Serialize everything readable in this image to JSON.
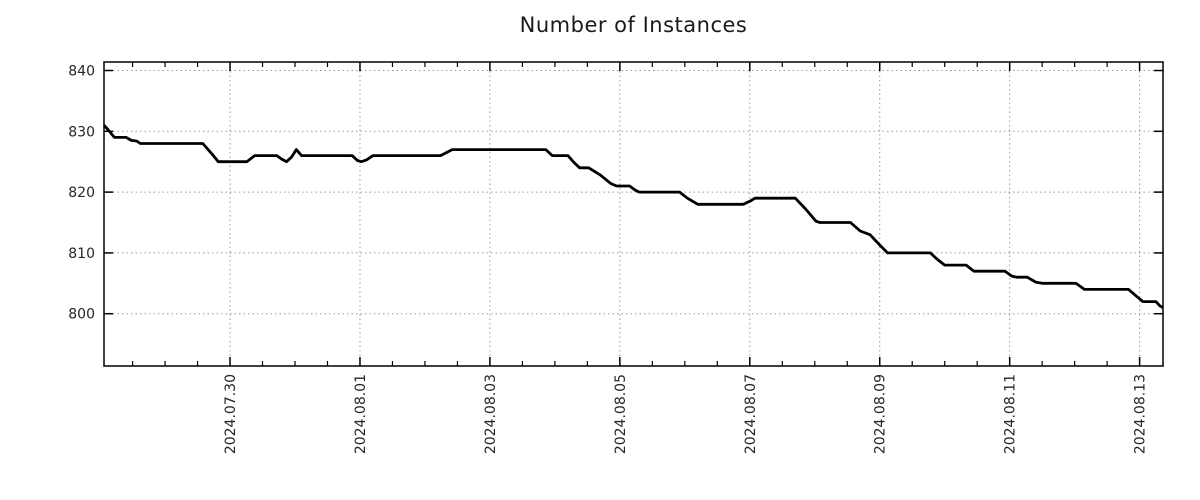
{
  "colors": {
    "line": "#000000",
    "grid": "#999999",
    "frame": "#000000",
    "text": "#262626",
    "background": "#ffffff"
  },
  "chart_data": {
    "type": "line",
    "title": "Number of Instances",
    "xlabel": "",
    "ylabel": "",
    "grid": true,
    "legend": null,
    "x_unit": "days since 2024-07-28 00:00",
    "x_domain": [
      0.06,
      16.36
    ],
    "ylim": [
      791.4,
      841.4
    ],
    "y_ticks": [
      800,
      810,
      820,
      830,
      840
    ],
    "x_minor_step": 0.5,
    "x_ticks": [
      {
        "t": 2,
        "label": "2024.07.30"
      },
      {
        "t": 4,
        "label": "2024.08.01"
      },
      {
        "t": 6,
        "label": "2024.08.03"
      },
      {
        "t": 8,
        "label": "2024.08.05"
      },
      {
        "t": 10,
        "label": "2024.08.07"
      },
      {
        "t": 12,
        "label": "2024.08.09"
      },
      {
        "t": 14,
        "label": "2024.08.11"
      },
      {
        "t": 16,
        "label": "2024.08.13"
      }
    ],
    "series": [
      {
        "name": "Number of Instances",
        "points": [
          [
            0.06,
            831
          ],
          [
            0.12,
            830.3
          ],
          [
            0.22,
            829
          ],
          [
            0.4,
            829
          ],
          [
            0.48,
            828.5
          ],
          [
            0.56,
            828.4
          ],
          [
            0.62,
            828
          ],
          [
            1.58,
            828
          ],
          [
            1.72,
            826.3
          ],
          [
            1.82,
            825
          ],
          [
            2.26,
            825
          ],
          [
            2.38,
            826
          ],
          [
            2.72,
            826
          ],
          [
            2.8,
            825.4
          ],
          [
            2.87,
            825
          ],
          [
            2.95,
            825.8
          ],
          [
            3.02,
            827
          ],
          [
            3.1,
            826
          ],
          [
            3.88,
            826
          ],
          [
            3.96,
            825.2
          ],
          [
            4.02,
            825
          ],
          [
            4.1,
            825.3
          ],
          [
            4.2,
            826
          ],
          [
            5.24,
            826
          ],
          [
            5.33,
            826.5
          ],
          [
            5.42,
            827
          ],
          [
            6.86,
            827
          ],
          [
            6.96,
            826
          ],
          [
            7.2,
            826
          ],
          [
            7.3,
            824.8
          ],
          [
            7.38,
            824
          ],
          [
            7.52,
            824
          ],
          [
            7.7,
            822.8
          ],
          [
            7.86,
            821.4
          ],
          [
            7.95,
            821
          ],
          [
            8.15,
            821
          ],
          [
            8.24,
            820.3
          ],
          [
            8.3,
            820
          ],
          [
            8.92,
            820
          ],
          [
            9.04,
            819
          ],
          [
            9.2,
            818
          ],
          [
            9.9,
            818
          ],
          [
            10.02,
            818.6
          ],
          [
            10.08,
            819
          ],
          [
            10.7,
            819
          ],
          [
            10.86,
            817.2
          ],
          [
            11.02,
            815.2
          ],
          [
            11.08,
            815
          ],
          [
            11.55,
            815
          ],
          [
            11.7,
            813.6
          ],
          [
            11.85,
            813
          ],
          [
            12.0,
            811.3
          ],
          [
            12.12,
            810
          ],
          [
            12.78,
            810
          ],
          [
            12.88,
            809
          ],
          [
            13.0,
            808
          ],
          [
            13.33,
            808
          ],
          [
            13.45,
            807
          ],
          [
            13.93,
            807
          ],
          [
            14.03,
            806.2
          ],
          [
            14.1,
            806
          ],
          [
            14.27,
            806
          ],
          [
            14.4,
            805.2
          ],
          [
            14.5,
            805
          ],
          [
            15.02,
            805
          ],
          [
            15.15,
            804
          ],
          [
            15.83,
            804
          ],
          [
            15.96,
            802.8
          ],
          [
            16.05,
            802
          ],
          [
            16.25,
            802
          ],
          [
            16.31,
            801.3
          ],
          [
            16.36,
            801
          ]
        ]
      }
    ]
  }
}
